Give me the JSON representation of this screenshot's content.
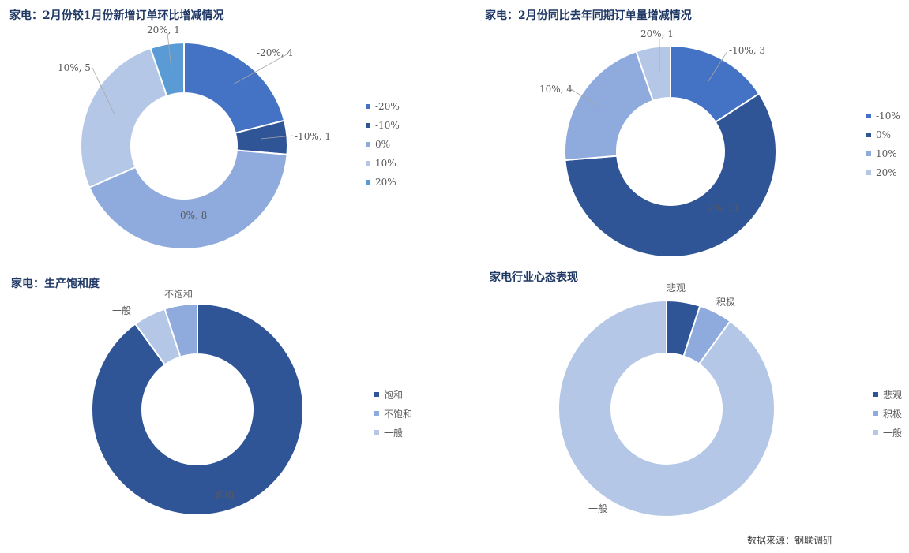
{
  "chart_data": [
    {
      "type": "pie",
      "donut": true,
      "title": "家电：2月份较1月份新增订单环比增减情况",
      "series": [
        {
          "name": "-20%",
          "value": 4,
          "label": "-20%, 4",
          "color": "#4472c4"
        },
        {
          "name": "-10%",
          "value": 1,
          "label": "-10%, 1",
          "color": "#2f5597"
        },
        {
          "name": "0%",
          "value": 8,
          "label": "0%, 8",
          "color": "#8faadc"
        },
        {
          "name": "10%",
          "value": 5,
          "label": "10%, 5",
          "color": "#b4c7e7"
        },
        {
          "name": "20%",
          "value": 1,
          "label": "20%, 1",
          "color": "#5b9bd5"
        }
      ],
      "legend_position": "right"
    },
    {
      "type": "pie",
      "donut": true,
      "title": "家电：2月份同比去年同期订单量增减情况",
      "series": [
        {
          "name": "-10%",
          "value": 3,
          "label": "-10%, 3",
          "color": "#4472c4"
        },
        {
          "name": "0%",
          "value": 11,
          "label": "0%, 11",
          "color": "#2f5597"
        },
        {
          "name": "10%",
          "value": 4,
          "label": "10%, 4",
          "color": "#8faadc"
        },
        {
          "name": "20%",
          "value": 1,
          "label": "20%, 1",
          "color": "#b4c7e7"
        }
      ],
      "legend_position": "right"
    },
    {
      "type": "pie",
      "donut": true,
      "title": "家电：生产饱和度",
      "series": [
        {
          "name": "饱和",
          "value": 90,
          "label": "饱和",
          "color": "#2f5597"
        },
        {
          "name": "不饱和",
          "value": 5,
          "label": "不饱和",
          "color": "#b4c7e7"
        },
        {
          "name": "一般",
          "value": 5,
          "label": "一般",
          "color": "#8faadc"
        }
      ],
      "legend": [
        {
          "name": "饱和",
          "color": "#2f5597"
        },
        {
          "name": "不饱和",
          "color": "#8faadc"
        },
        {
          "name": "一般",
          "color": "#b4c7e7"
        }
      ],
      "legend_position": "right"
    },
    {
      "type": "pie",
      "donut": true,
      "title": "家电行业心态表现",
      "series": [
        {
          "name": "悲观",
          "value": 5,
          "label": "悲观",
          "color": "#2f5597"
        },
        {
          "name": "积极",
          "value": 5,
          "label": "积极",
          "color": "#8faadc"
        },
        {
          "name": "一般",
          "value": 90,
          "label": "一般",
          "color": "#b4c7e7"
        }
      ],
      "legend_position": "right"
    }
  ],
  "source": "数据来源：钢联调研"
}
